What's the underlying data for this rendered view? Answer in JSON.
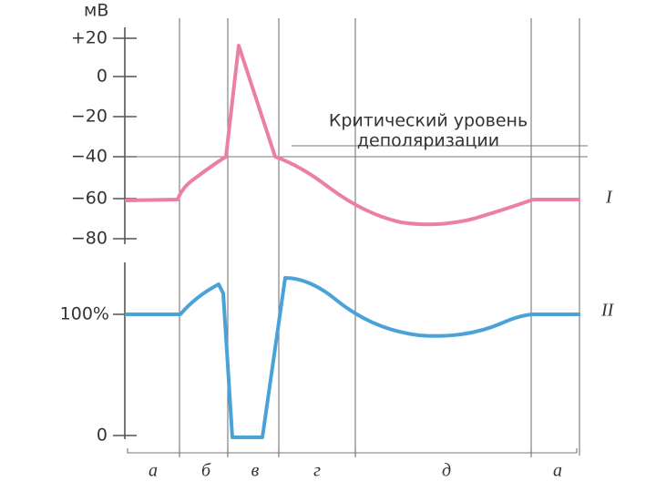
{
  "axis_unit": "мВ",
  "potential_ticks": [
    "+20",
    "0",
    "−20",
    "−40",
    "−60",
    "−80"
  ],
  "excitability_ticks": [
    "100%",
    "0"
  ],
  "critical_label": [
    "Критический уровень",
    "деполяризации"
  ],
  "curve_labels": [
    "I",
    "II"
  ],
  "phases": [
    "а",
    "б",
    "в",
    "г",
    "д",
    "а"
  ]
}
